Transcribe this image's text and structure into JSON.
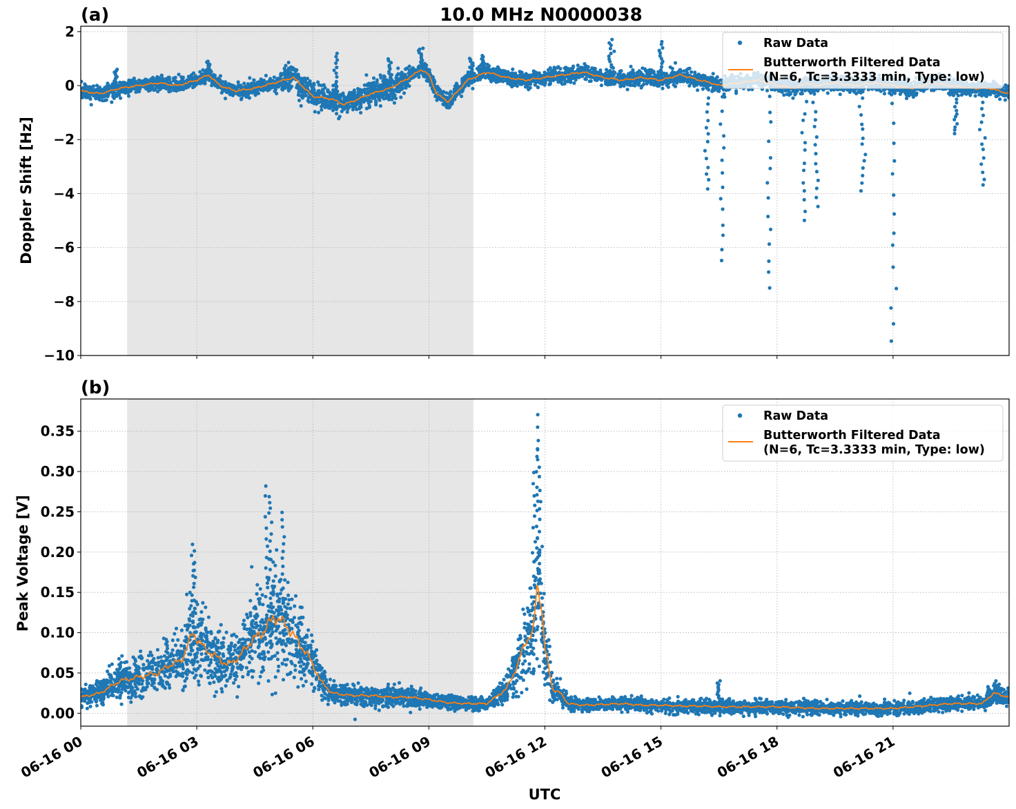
{
  "figure": {
    "title": "10.0 MHz N0000038",
    "x_axis_label": "UTC"
  },
  "colors": {
    "raw": "#1f77b4",
    "filtered": "#ff7f0e",
    "night_shade": "#e6e6e6",
    "grid": "#b0b0b0"
  },
  "chart_data": [
    {
      "type": "scatter",
      "panel_label": "(a)",
      "title": "10.0 MHz N0000038",
      "xlabel": "",
      "ylabel": "Doppler Shift [Hz]",
      "x_unit": "hours UTC on 06-16",
      "xlim": [
        0,
        24
      ],
      "ylim": [
        -10,
        2.2
      ],
      "yticks": [
        2,
        0,
        -2,
        -4,
        -6,
        -8,
        -10
      ],
      "ytick_labels": [
        "2",
        "0",
        "−2",
        "−4",
        "−6",
        "−8",
        "−10"
      ],
      "grid": true,
      "legend_position": "top-right",
      "shaded_interval": [
        1.2,
        10.15
      ],
      "series": [
        {
          "name": "Raw Data",
          "kind": "points",
          "x": [
            0,
            0.5,
            1,
            1.5,
            2,
            2.5,
            3,
            3.3,
            3.6,
            4,
            4.5,
            5,
            5.5,
            6,
            6.5,
            6.8,
            7,
            7.5,
            8,
            8.5,
            8.8,
            9,
            9.2,
            9.5,
            10,
            10.5,
            11,
            11.5,
            12,
            12.5,
            13,
            13.5,
            14,
            14.5,
            15,
            15.5,
            16,
            16.3,
            16.5,
            17,
            17.5,
            17.8,
            18,
            18.5,
            18.7,
            19,
            19.5,
            20,
            20.5,
            21,
            21.5,
            22,
            22.5,
            23,
            23.5,
            24
          ],
          "y": [
            -0.2,
            -0.3,
            -0.1,
            0,
            0.1,
            0,
            0.2,
            0.4,
            0,
            -0.2,
            -0.1,
            0.1,
            0.3,
            -0.4,
            -0.5,
            -0.7,
            -0.6,
            -0.3,
            -0.1,
            0.3,
            0.6,
            0.4,
            -0.3,
            -0.6,
            0.2,
            0.5,
            0.3,
            0.2,
            0.3,
            0.4,
            0.5,
            0.3,
            0.2,
            0.3,
            0.2,
            0.4,
            0.2,
            0.1,
            0,
            0.1,
            0.2,
            0.1,
            0,
            -0.1,
            0.1,
            0,
            0.1,
            0,
            0.1,
            0,
            -0.1,
            0.1,
            0,
            -0.1,
            -0.1,
            -0.3
          ]
        },
        {
          "name": "Raw Data",
          "kind": "spikes",
          "x": [
            0.9,
            3.3,
            6.6,
            8.0,
            8.8,
            10.1,
            10.4,
            13.7,
            15.0,
            16.2,
            16.6,
            17.8,
            18.7,
            19.0,
            20.2,
            21.0,
            22.6,
            23.3
          ],
          "y": [
            0.6,
            0.9,
            1.2,
            1.0,
            1.4,
            1.0,
            1.1,
            1.7,
            1.6,
            -3.8,
            -6.5,
            -7.5,
            -5.0,
            -4.5,
            -3.9,
            -9.5,
            -1.8,
            -3.7
          ]
        },
        {
          "name": "Butterworth Filtered Data\n(N=6, Tc=3.3333 min, Type: low)",
          "kind": "line",
          "x": [
            0,
            0.5,
            1,
            1.5,
            2,
            2.5,
            3,
            3.3,
            3.6,
            4,
            4.5,
            5,
            5.5,
            6,
            6.5,
            6.8,
            7,
            7.5,
            8,
            8.5,
            8.8,
            9,
            9.2,
            9.5,
            10,
            10.5,
            11,
            11.5,
            12,
            12.5,
            13,
            13.5,
            14,
            14.5,
            15,
            15.5,
            16,
            16.3,
            16.5,
            17,
            17.5,
            17.8,
            18,
            18.5,
            18.7,
            19,
            19.5,
            20,
            20.5,
            21,
            21.5,
            22,
            22.5,
            23,
            23.5,
            24
          ],
          "y": [
            -0.2,
            -0.3,
            -0.1,
            0,
            0.1,
            0,
            0.2,
            0.4,
            0,
            -0.2,
            -0.1,
            0.1,
            0.3,
            -0.4,
            -0.5,
            -0.7,
            -0.6,
            -0.3,
            -0.1,
            0.3,
            0.6,
            0.4,
            -0.3,
            -0.6,
            0.2,
            0.5,
            0.3,
            0.2,
            0.3,
            0.4,
            0.5,
            0.3,
            0.2,
            0.3,
            0.2,
            0.4,
            0.2,
            0.1,
            0,
            0.1,
            0.2,
            0.1,
            0,
            -0.1,
            0.1,
            0,
            0.1,
            0,
            0.1,
            0,
            -0.1,
            0.1,
            0,
            -0.1,
            -0.1,
            -0.3
          ]
        }
      ]
    },
    {
      "type": "scatter",
      "panel_label": "(b)",
      "xlabel": "UTC",
      "ylabel": "Peak Voltage [V]",
      "x_unit": "hours UTC on 06-16",
      "xlim": [
        0,
        24
      ],
      "ylim": [
        -0.016,
        0.39
      ],
      "yticks": [
        0.0,
        0.05,
        0.1,
        0.15,
        0.2,
        0.25,
        0.3,
        0.35
      ],
      "ytick_labels": [
        "0.00",
        "0.05",
        "0.10",
        "0.15",
        "0.20",
        "0.25",
        "0.30",
        "0.35"
      ],
      "xticks": [
        0,
        3,
        6,
        9,
        12,
        15,
        18,
        21
      ],
      "xtick_labels": [
        "06-16 00",
        "06-16 03",
        "06-16 06",
        "06-16 09",
        "06-16 12",
        "06-16 15",
        "06-16 18",
        "06-16 21"
      ],
      "grid": true,
      "legend_position": "top-right",
      "shaded_interval": [
        1.2,
        10.15
      ],
      "series": [
        {
          "name": "Raw Data",
          "kind": "points",
          "x": [
            0,
            0.5,
            1,
            1.5,
            2,
            2.3,
            2.6,
            2.9,
            3.2,
            3.5,
            3.8,
            4.1,
            4.4,
            4.7,
            5.0,
            5.3,
            5.6,
            5.9,
            6.2,
            6.5,
            7,
            7.5,
            8,
            8.5,
            9,
            9.5,
            10,
            10.5,
            11,
            11.3,
            11.5,
            11.7,
            11.8,
            11.9,
            12.0,
            12.2,
            12.4,
            12.6,
            13,
            13.5,
            14,
            14.5,
            15,
            15.5,
            16,
            16.5,
            17,
            17.5,
            18,
            18.5,
            19,
            19.5,
            20,
            20.5,
            21,
            21.5,
            22,
            22.5,
            23,
            23.3,
            23.6,
            24
          ],
          "y": [
            0.02,
            0.025,
            0.04,
            0.045,
            0.05,
            0.06,
            0.065,
            0.1,
            0.08,
            0.07,
            0.06,
            0.07,
            0.09,
            0.1,
            0.12,
            0.11,
            0.09,
            0.07,
            0.04,
            0.025,
            0.022,
            0.022,
            0.02,
            0.02,
            0.017,
            0.013,
            0.012,
            0.012,
            0.03,
            0.06,
            0.09,
            0.1,
            0.16,
            0.14,
            0.08,
            0.03,
            0.025,
            0.012,
            0.01,
            0.011,
            0.012,
            0.01,
            0.01,
            0.009,
            0.009,
            0.008,
            0.008,
            0.008,
            0.008,
            0.007,
            0.006,
            0.006,
            0.006,
            0.006,
            0.006,
            0.008,
            0.01,
            0.012,
            0.012,
            0.012,
            0.025,
            0.02
          ]
        },
        {
          "name": "Raw Data",
          "kind": "spikes",
          "x": [
            2.9,
            4.8,
            4.9,
            5.2,
            11.7,
            11.8,
            11.85,
            16.5
          ],
          "y": [
            0.21,
            0.28,
            0.27,
            0.25,
            0.3,
            0.37,
            0.33,
            0.04
          ]
        },
        {
          "name": "Butterworth Filtered Data\n(N=6, Tc=3.3333 min, Type: low)",
          "kind": "line",
          "x": [
            0,
            0.5,
            1,
            1.5,
            2,
            2.3,
            2.6,
            2.9,
            3.2,
            3.5,
            3.8,
            4.1,
            4.4,
            4.7,
            5.0,
            5.3,
            5.6,
            5.9,
            6.2,
            6.5,
            7,
            7.5,
            8,
            8.5,
            9,
            9.5,
            10,
            10.5,
            11,
            11.3,
            11.5,
            11.7,
            11.8,
            11.9,
            12.0,
            12.2,
            12.4,
            12.6,
            13,
            13.5,
            14,
            14.5,
            15,
            15.5,
            16,
            16.5,
            17,
            17.5,
            18,
            18.5,
            19,
            19.5,
            20,
            20.5,
            21,
            21.5,
            22,
            22.5,
            23,
            23.3,
            23.6,
            24
          ],
          "y": [
            0.02,
            0.025,
            0.04,
            0.045,
            0.05,
            0.06,
            0.065,
            0.1,
            0.08,
            0.07,
            0.06,
            0.07,
            0.09,
            0.1,
            0.12,
            0.11,
            0.09,
            0.07,
            0.04,
            0.025,
            0.022,
            0.022,
            0.02,
            0.02,
            0.017,
            0.013,
            0.012,
            0.012,
            0.03,
            0.06,
            0.09,
            0.1,
            0.16,
            0.14,
            0.08,
            0.03,
            0.025,
            0.012,
            0.01,
            0.011,
            0.012,
            0.01,
            0.01,
            0.009,
            0.009,
            0.008,
            0.008,
            0.008,
            0.008,
            0.007,
            0.006,
            0.006,
            0.006,
            0.006,
            0.006,
            0.008,
            0.01,
            0.012,
            0.012,
            0.012,
            0.025,
            0.02
          ]
        }
      ]
    }
  ],
  "legend": {
    "raw_label": "Raw Data",
    "filtered_label_line1": "Butterworth Filtered Data",
    "filtered_label_line2": "(N=6, Tc=3.3333 min, Type: low)"
  }
}
